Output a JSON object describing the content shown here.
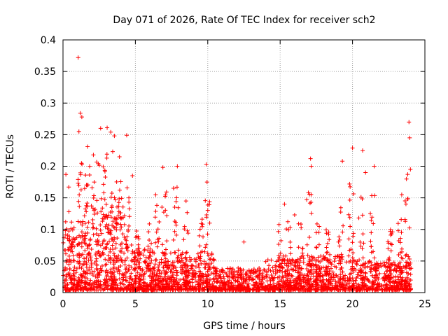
{
  "chart_data": {
    "type": "scatter",
    "title": "Day 071 of 2026, Rate Of TEC Index for receiver sch2",
    "xlabel": "GPS time / hours",
    "ylabel": "ROTI / TECUs",
    "xlim": [
      0,
      25
    ],
    "ylim": [
      0,
      0.4
    ],
    "grid": true,
    "marker": "+",
    "series_color": "#ff0000",
    "x_ticks": [
      {
        "value": 0,
        "label": "0"
      },
      {
        "value": 5,
        "label": "5"
      },
      {
        "value": 10,
        "label": "10"
      },
      {
        "value": 15,
        "label": "15"
      },
      {
        "value": 20,
        "label": "20"
      },
      {
        "value": 25,
        "label": "25"
      }
    ],
    "y_ticks": [
      {
        "value": 0,
        "label": "0"
      },
      {
        "value": 0.05,
        "label": "0.05"
      },
      {
        "value": 0.1,
        "label": "0.1"
      },
      {
        "value": 0.15,
        "label": "0.15"
      },
      {
        "value": 0.2,
        "label": "0.2"
      },
      {
        "value": 0.25,
        "label": "0.25"
      },
      {
        "value": 0.3,
        "label": "0.3"
      },
      {
        "value": 0.35,
        "label": "0.35"
      },
      {
        "value": 0.4,
        "label": "0.4"
      }
    ],
    "series": [
      {
        "name": "ROTI",
        "notable_points": [
          {
            "x": 1.05,
            "y": 0.372
          },
          {
            "x": 1.2,
            "y": 0.284
          },
          {
            "x": 1.3,
            "y": 0.278
          },
          {
            "x": 1.1,
            "y": 0.255
          },
          {
            "x": 0.2,
            "y": 0.187
          },
          {
            "x": 0.4,
            "y": 0.167
          },
          {
            "x": 1.7,
            "y": 0.231
          },
          {
            "x": 2.1,
            "y": 0.218
          },
          {
            "x": 2.6,
            "y": 0.26
          },
          {
            "x": 3.05,
            "y": 0.261
          },
          {
            "x": 3.3,
            "y": 0.254
          },
          {
            "x": 3.55,
            "y": 0.248
          },
          {
            "x": 3.9,
            "y": 0.215
          },
          {
            "x": 4.4,
            "y": 0.249
          },
          {
            "x": 4.8,
            "y": 0.185
          },
          {
            "x": 6.4,
            "y": 0.155
          },
          {
            "x": 6.9,
            "y": 0.198
          },
          {
            "x": 7.9,
            "y": 0.2
          },
          {
            "x": 8.5,
            "y": 0.145
          },
          {
            "x": 9.9,
            "y": 0.203
          },
          {
            "x": 9.95,
            "y": 0.175
          },
          {
            "x": 10.0,
            "y": 0.13
          },
          {
            "x": 12.5,
            "y": 0.08
          },
          {
            "x": 15.3,
            "y": 0.14
          },
          {
            "x": 16.0,
            "y": 0.123
          },
          {
            "x": 17.1,
            "y": 0.212
          },
          {
            "x": 17.15,
            "y": 0.2
          },
          {
            "x": 19.3,
            "y": 0.208
          },
          {
            "x": 20.0,
            "y": 0.229
          },
          {
            "x": 20.7,
            "y": 0.225
          },
          {
            "x": 20.9,
            "y": 0.19
          },
          {
            "x": 21.5,
            "y": 0.2
          },
          {
            "x": 23.4,
            "y": 0.155
          },
          {
            "x": 23.9,
            "y": 0.27
          },
          {
            "x": 23.95,
            "y": 0.245
          },
          {
            "x": 24.0,
            "y": 0.195
          }
        ]
      }
    ]
  }
}
